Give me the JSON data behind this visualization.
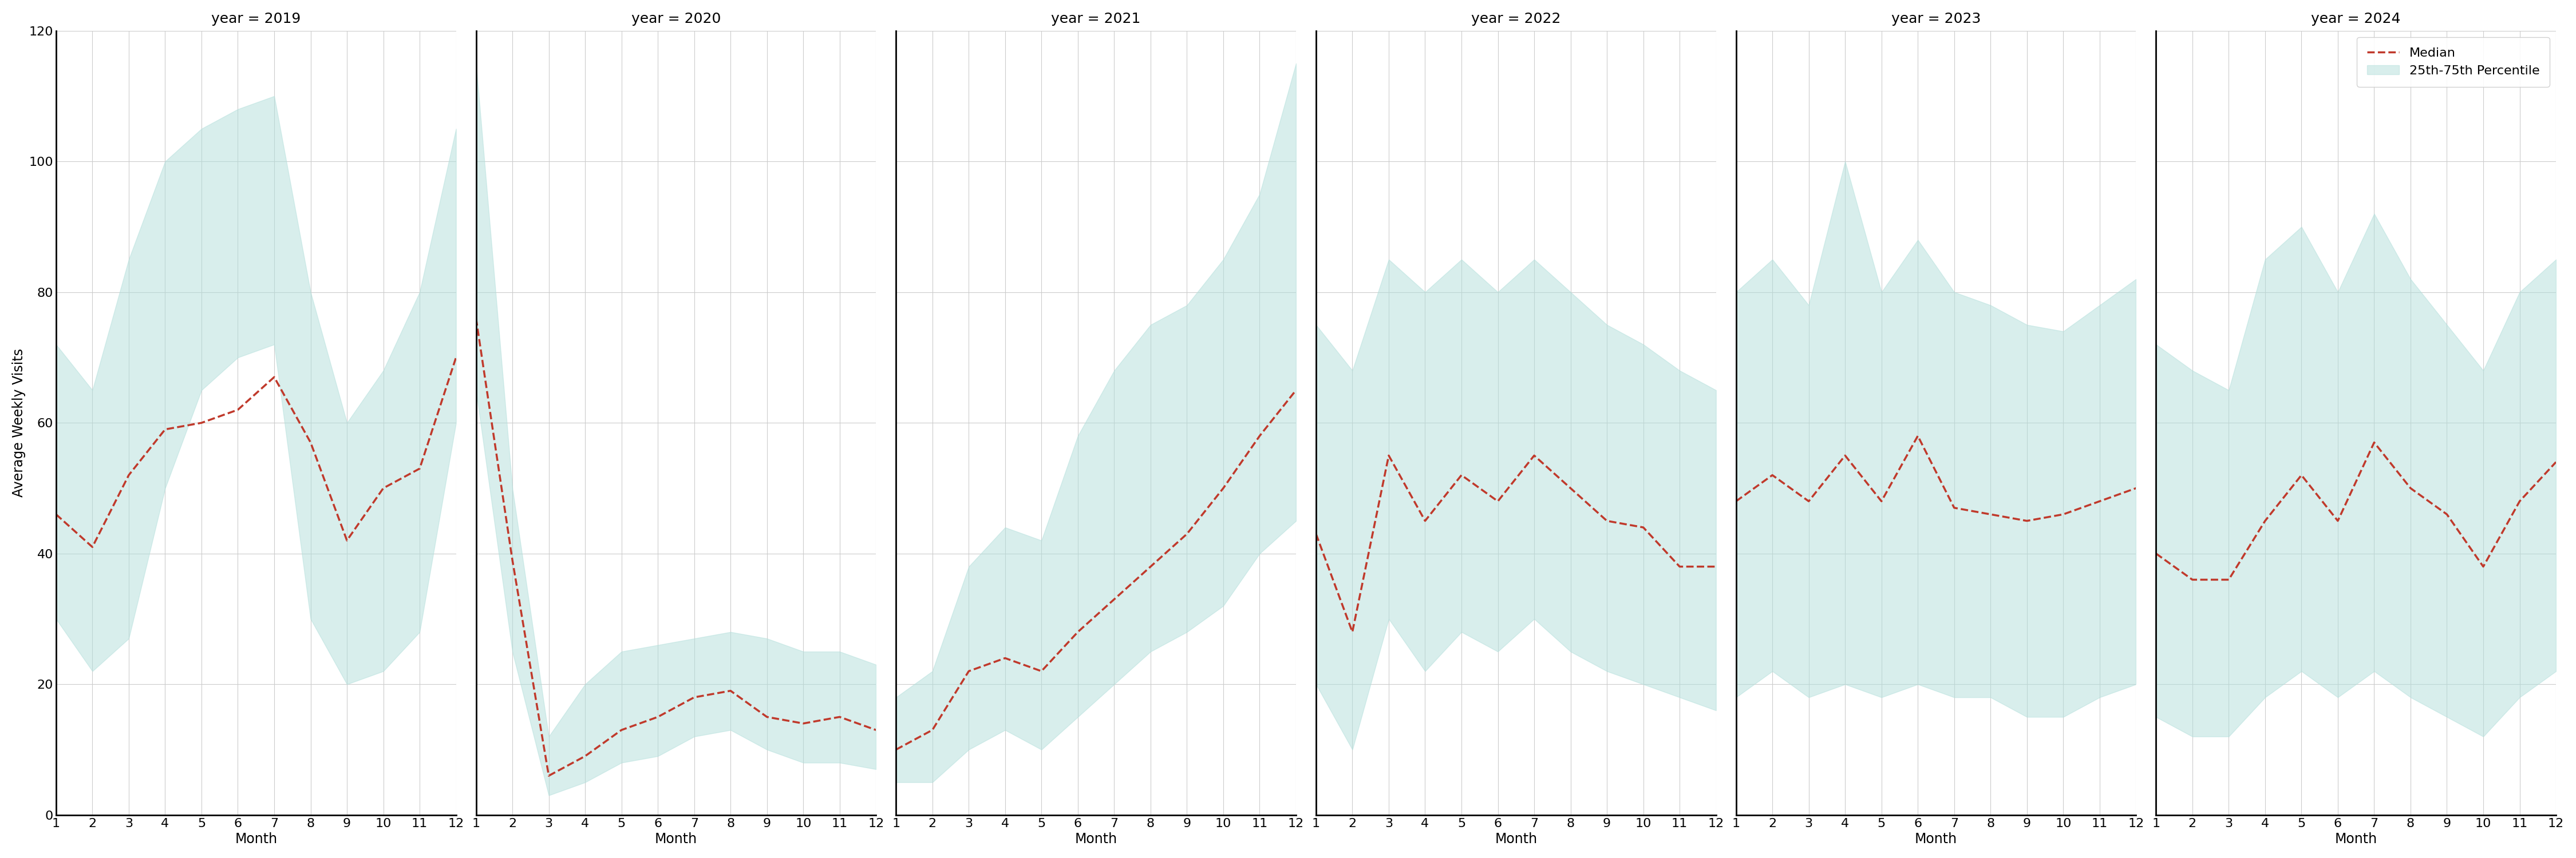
{
  "years": [
    2019,
    2020,
    2021,
    2022,
    2023,
    2024
  ],
  "months": [
    1,
    2,
    3,
    4,
    5,
    6,
    7,
    8,
    9,
    10,
    11,
    12
  ],
  "median": {
    "2019": [
      46,
      41,
      52,
      59,
      60,
      62,
      67,
      57,
      42,
      50,
      53,
      70
    ],
    "2020": [
      76,
      39,
      6,
      9,
      13,
      15,
      18,
      19,
      15,
      14,
      15,
      13
    ],
    "2021": [
      10,
      13,
      22,
      24,
      22,
      28,
      33,
      38,
      43,
      50,
      58,
      65
    ],
    "2022": [
      43,
      28,
      55,
      45,
      52,
      48,
      55,
      50,
      45,
      44,
      38,
      38
    ],
    "2023": [
      48,
      52,
      48,
      55,
      48,
      58,
      47,
      46,
      45,
      46,
      48,
      50
    ],
    "2024": [
      40,
      36,
      36,
      45,
      52,
      45,
      57,
      50,
      46,
      38,
      48,
      54
    ]
  },
  "p25": {
    "2019": [
      30,
      22,
      27,
      50,
      65,
      70,
      72,
      30,
      20,
      22,
      28,
      60
    ],
    "2020": [
      65,
      25,
      3,
      5,
      8,
      9,
      12,
      13,
      10,
      8,
      8,
      7
    ],
    "2021": [
      5,
      5,
      10,
      13,
      10,
      15,
      20,
      25,
      28,
      32,
      40,
      45
    ],
    "2022": [
      20,
      10,
      30,
      22,
      28,
      25,
      30,
      25,
      22,
      20,
      18,
      16
    ],
    "2023": [
      18,
      22,
      18,
      20,
      18,
      20,
      18,
      18,
      15,
      15,
      18,
      20
    ],
    "2024": [
      15,
      12,
      12,
      18,
      22,
      18,
      22,
      18,
      15,
      12,
      18,
      22
    ]
  },
  "p75": {
    "2019": [
      72,
      65,
      85,
      100,
      105,
      108,
      110,
      80,
      60,
      68,
      80,
      105
    ],
    "2020": [
      115,
      50,
      12,
      20,
      25,
      26,
      27,
      28,
      27,
      25,
      25,
      23
    ],
    "2021": [
      18,
      22,
      38,
      44,
      42,
      58,
      68,
      75,
      78,
      85,
      95,
      115
    ],
    "2022": [
      75,
      68,
      85,
      80,
      85,
      80,
      85,
      80,
      75,
      72,
      68,
      65
    ],
    "2023": [
      80,
      85,
      78,
      100,
      80,
      88,
      80,
      78,
      75,
      74,
      78,
      82
    ],
    "2024": [
      72,
      68,
      65,
      85,
      90,
      80,
      92,
      82,
      75,
      68,
      80,
      85
    ]
  },
  "fill_color": "#b2dfdb",
  "fill_alpha": 0.5,
  "line_color": "#c0392b",
  "line_style": "--",
  "line_width": 2.5,
  "grid_color": "#cccccc",
  "background_color": "#ffffff",
  "ylabel": "Average Weekly Visits",
  "xlabel": "Month",
  "ylim": [
    0,
    120
  ],
  "yticks": [
    0,
    20,
    40,
    60,
    80,
    100,
    120
  ],
  "xticks": [
    1,
    2,
    3,
    4,
    5,
    6,
    7,
    8,
    9,
    10,
    11,
    12
  ],
  "title_fontsize": 18,
  "tick_fontsize": 16,
  "label_fontsize": 17,
  "legend_fontsize": 16
}
